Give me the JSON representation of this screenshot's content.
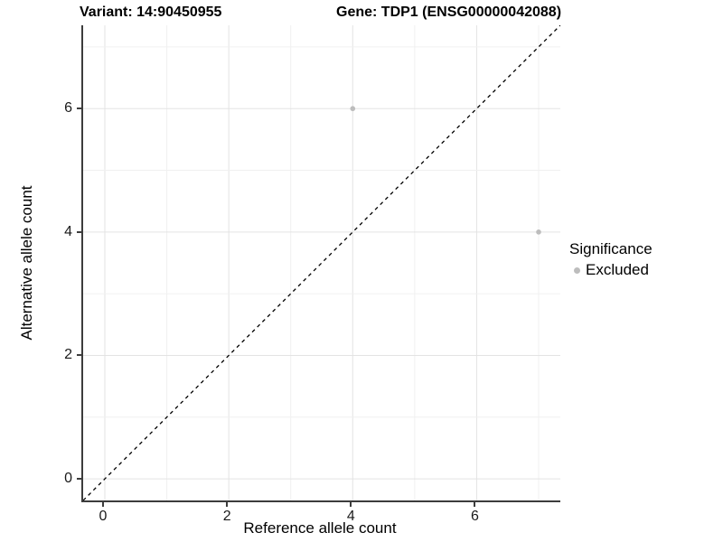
{
  "header": {
    "variant_title": "Variant: 14:90450955",
    "gene_title": "Gene: TDP1 (ENSG00000042088)"
  },
  "legend": {
    "title": "Significance",
    "items": [
      {
        "label": "Excluded",
        "color": "#bdbdbd"
      }
    ]
  },
  "chart_data": {
    "type": "scatter",
    "title": "Variant: 14:90450955 | Gene: TDP1 (ENSG00000042088)",
    "xlabel": "Reference allele count",
    "ylabel": "Alternative allele count",
    "xlim": [
      -0.35,
      7.35
    ],
    "ylim": [
      -0.35,
      7.35
    ],
    "x_ticks": [
      0,
      2,
      4,
      6
    ],
    "y_ticks": [
      0,
      2,
      4,
      6
    ],
    "grid": "major at even integers, minor at odd integers",
    "legend_position": "right",
    "series": [
      {
        "name": "Excluded",
        "color": "#bdbdbd",
        "point_size": 2.8,
        "points": [
          {
            "x": 4,
            "y": 6
          },
          {
            "x": 7,
            "y": 4
          }
        ]
      }
    ],
    "reference_line": {
      "type": "identity",
      "equation": "y = x",
      "style": "dashed",
      "color": "#000000"
    }
  },
  "style": {
    "grid_major_color": "#e3e3e3",
    "grid_minor_color": "#f0f0f0",
    "axis_line_color": "#3c3c3c",
    "background": "#ffffff"
  }
}
